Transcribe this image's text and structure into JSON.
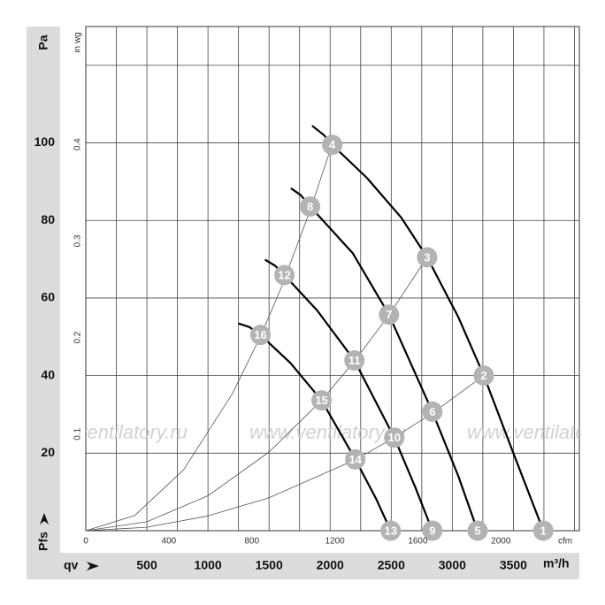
{
  "chart_data": {
    "type": "line",
    "y_label": "Pa",
    "y_symbol": "Pfs",
    "y2_label": "in wg",
    "x_symbol": "qv",
    "x_label": "m³/h",
    "x2_label": "cfm",
    "watermark": "www.ventilatory.ru",
    "xlim": [
      0,
      4040
    ],
    "xticks": [
      500,
      1000,
      1500,
      2000,
      2500,
      3000,
      3500
    ],
    "xgrid": [
      250,
      500,
      750,
      1000,
      1250,
      1500,
      1750,
      2000,
      2250,
      2500,
      2750,
      3000,
      3250,
      3500,
      3750,
      4000
    ],
    "x2lim": [
      0,
      2378
    ],
    "x2ticks": [
      0,
      400,
      800,
      1200,
      1600,
      2000
    ],
    "ylim": [
      0,
      130
    ],
    "yticks": [
      20,
      40,
      60,
      80,
      100
    ],
    "ygrid": [
      20,
      40,
      60,
      80,
      100,
      120
    ],
    "y2lim": [
      0,
      0.522
    ],
    "y2ticks": [
      0.1,
      0.2,
      0.3,
      0.4
    ],
    "series": [
      {
        "color": "#000000",
        "width": 2.2,
        "x": [
          1858,
          1950,
          2017,
          2300,
          2583,
          2794,
          3050,
          3258,
          3500,
          3745
        ],
        "values": [
          104.3,
          102,
          99.5,
          91,
          80.7,
          70.5,
          55,
          40,
          20,
          0
        ]
      },
      {
        "color": "#000000",
        "width": 2.2,
        "x": [
          1684,
          1760,
          1836,
          2184,
          2482,
          2837,
          3050,
          3207
        ],
        "values": [
          88.2,
          86.5,
          83.6,
          71.6,
          55.7,
          30.7,
          14,
          0
        ]
      },
      {
        "color": "#000000",
        "width": 2.2,
        "x": [
          1473,
          1550,
          1626,
          1894,
          2199,
          2525,
          2700,
          2837
        ],
        "values": [
          69.8,
          68.3,
          65.9,
          56.8,
          43.9,
          24,
          11,
          0
        ]
      },
      {
        "color": "#000000",
        "width": 2.2,
        "x": [
          1255,
          1340,
          1430,
          1676,
          1930,
          2206,
          2380,
          2496
        ],
        "values": [
          53.4,
          52.5,
          50.5,
          43.2,
          33.6,
          18.4,
          8,
          0
        ]
      },
      {
        "color": "#555555",
        "width": 0.8,
        "x": [
          0,
          400,
          800,
          1200,
          1430,
          1600,
          1836,
          2017
        ],
        "values": [
          0,
          3.9,
          15.7,
          35.3,
          50.1,
          62.7,
          82.6,
          99.7
        ]
      },
      {
        "color": "#555555",
        "width": 0.8,
        "x": [
          0,
          500,
          1000,
          1500,
          1930,
          2199,
          2482,
          2794
        ],
        "values": [
          0,
          2.3,
          9,
          20.3,
          33.6,
          43.7,
          55.6,
          70.5
        ]
      },
      {
        "color": "#555555",
        "width": 0.8,
        "x": [
          0,
          500,
          1000,
          1500,
          2206,
          2525,
          2837,
          3258
        ],
        "values": [
          0,
          0.9,
          3.8,
          8.5,
          18.3,
          24,
          30.3,
          40
        ]
      }
    ],
    "points": [
      {
        "label": "1",
        "x": 3745,
        "y": 0
      },
      {
        "label": "2",
        "x": 3258,
        "y": 40
      },
      {
        "label": "3",
        "x": 2794,
        "y": 70.5
      },
      {
        "label": "4",
        "x": 2017,
        "y": 99.5
      },
      {
        "label": "5",
        "x": 3207,
        "y": 0
      },
      {
        "label": "6",
        "x": 2837,
        "y": 30.7
      },
      {
        "label": "7",
        "x": 2482,
        "y": 55.7
      },
      {
        "label": "8",
        "x": 1836,
        "y": 83.6
      },
      {
        "label": "9",
        "x": 2837,
        "y": 0
      },
      {
        "label": "10",
        "x": 2525,
        "y": 24
      },
      {
        "label": "11",
        "x": 2199,
        "y": 43.9
      },
      {
        "label": "12",
        "x": 1626,
        "y": 65.9
      },
      {
        "label": "13",
        "x": 2496,
        "y": 0
      },
      {
        "label": "14",
        "x": 2206,
        "y": 18.4
      },
      {
        "label": "15",
        "x": 1930,
        "y": 33.6
      },
      {
        "label": "16",
        "x": 1430,
        "y": 50.5
      }
    ]
  }
}
